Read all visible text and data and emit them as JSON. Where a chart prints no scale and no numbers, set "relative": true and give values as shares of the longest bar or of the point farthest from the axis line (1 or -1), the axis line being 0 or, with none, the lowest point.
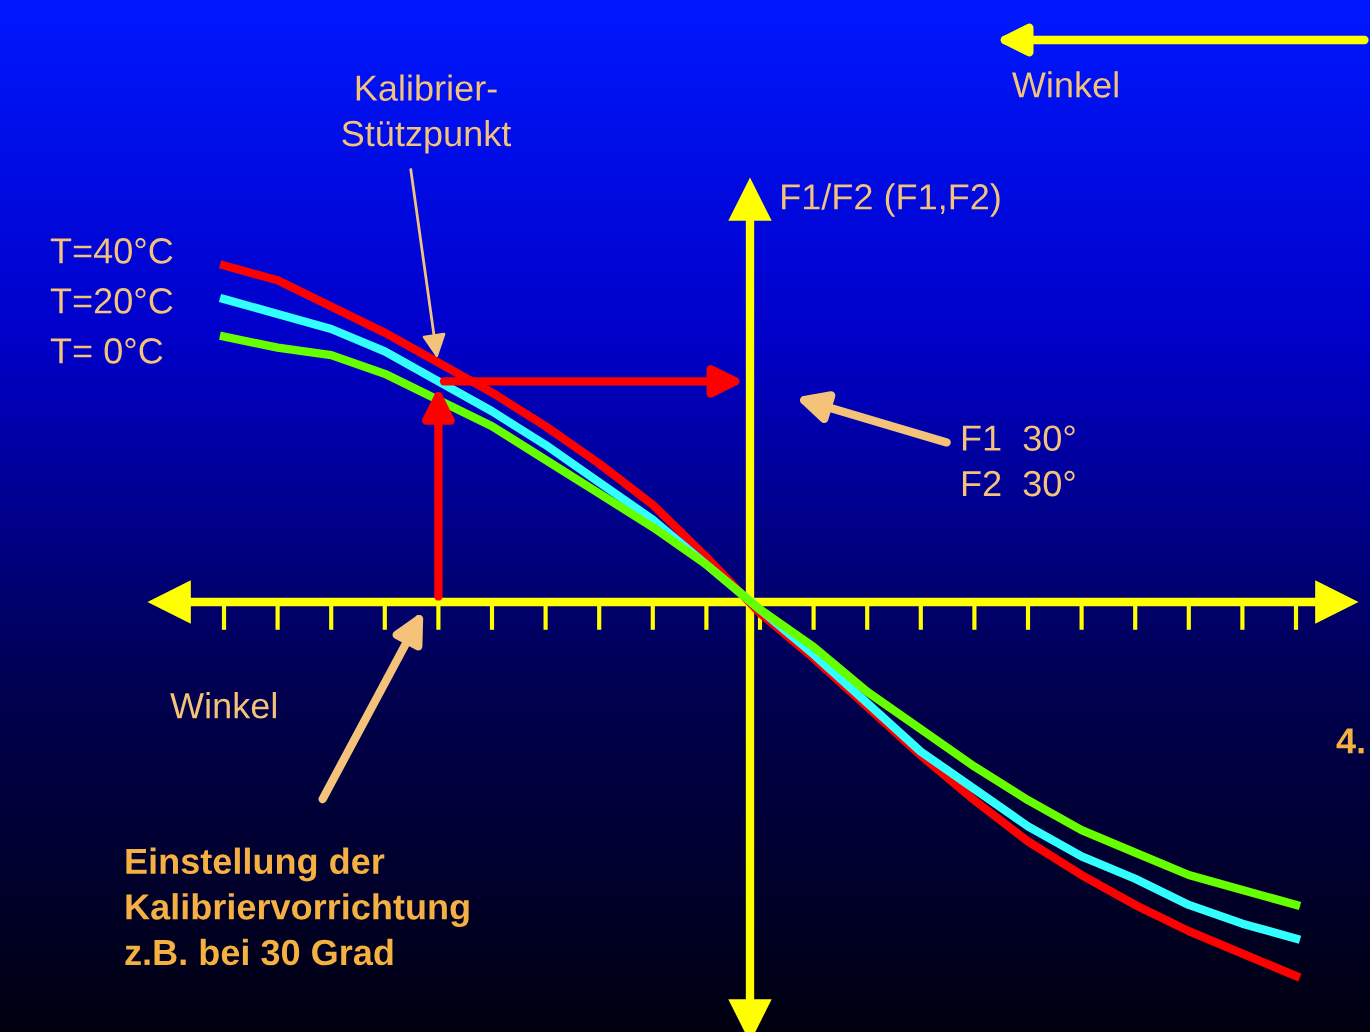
{
  "chart_data": {
    "type": "line",
    "relative": true,
    "categories": [
      null,
      null,
      null,
      null,
      null,
      null,
      null,
      null,
      null,
      null,
      null,
      null,
      null,
      null,
      null,
      null,
      null,
      null,
      null,
      null,
      null
    ],
    "series": [
      {
        "name": "T=40°C",
        "color": "#ff0000",
        "values": [
          0.9,
          0.86,
          0.79,
          0.72,
          0.64,
          0.56,
          0.47,
          0.37,
          0.26,
          0.12,
          -0.03,
          -0.15,
          -0.28,
          -0.41,
          -0.53,
          -0.64,
          -0.73,
          -0.81,
          -0.88,
          -0.94,
          -1
        ]
      },
      {
        "name": "T=20°C",
        "color": "#33ffff",
        "values": [
          0.81,
          0.77,
          0.73,
          0.67,
          0.59,
          0.51,
          0.42,
          0.32,
          0.22,
          0.1,
          -0.02,
          -0.14,
          -0.27,
          -0.4,
          -0.5,
          -0.6,
          -0.68,
          -0.74,
          -0.81,
          -0.86,
          -0.9
        ]
      },
      {
        "name": "T= 0°C",
        "color": "#66ff00",
        "values": [
          0.71,
          0.68,
          0.66,
          0.61,
          0.54,
          0.47,
          0.38,
          0.29,
          0.2,
          0.1,
          -0.02,
          -0.12,
          -0.24,
          -0.34,
          -0.44,
          -0.53,
          -0.61,
          -0.67,
          -0.73,
          -0.77,
          -0.81
        ]
      }
    ],
    "xlabel": "Winkel",
    "ylabel": "F1/F2 (F1,F2)",
    "annotations": [
      "Kalibrier-\nStützpunkt",
      "Winkel",
      "F1  30°\nF2  30°",
      "Einstellung der\nKalibriervorrichtung\nz.B. bei 30 Grad",
      "4."
    ],
    "ref_lines": [
      {
        "axis": "y",
        "value": 0,
        "color": "#ffff00"
      }
    ],
    "line_style": "solid",
    "marker": "none",
    "grid": false,
    "legend": false
  }
}
